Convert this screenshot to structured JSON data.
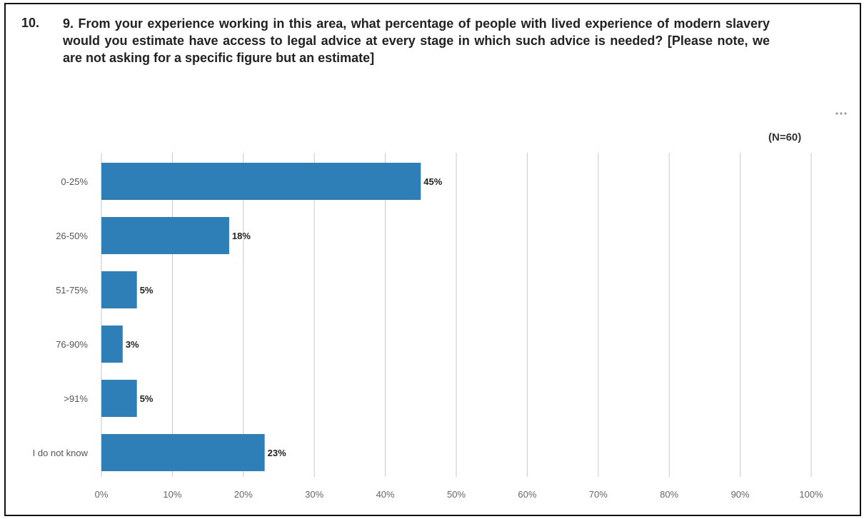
{
  "question": {
    "number": "10.",
    "text": "9. From your experience working in this area, what percentage of people with lived experience of modern slavery would you estimate have access to legal advice at every stage in which such advice is needed? [Please note, we are not asking for a specific figure but an estimate]"
  },
  "menu_icon": "more-horizontal-icon",
  "sample_size_label": "(N=60)",
  "chart_data": {
    "type": "bar",
    "orientation": "horizontal",
    "categories": [
      "0-25%",
      "26-50%",
      "51-75%",
      "76-90%",
      ">91%",
      "I do not know"
    ],
    "values": [
      45,
      18,
      5,
      3,
      5,
      23
    ],
    "value_labels": [
      "45%",
      "18%",
      "5%",
      "3%",
      "5%",
      "23%"
    ],
    "x_ticks": [
      "0%",
      "10%",
      "20%",
      "30%",
      "40%",
      "50%",
      "60%",
      "70%",
      "80%",
      "90%",
      "100%"
    ],
    "xlim": [
      0,
      100
    ],
    "grid": true,
    "bar_color": "#2e7eb8",
    "grid_color": "#c9c9c9"
  }
}
